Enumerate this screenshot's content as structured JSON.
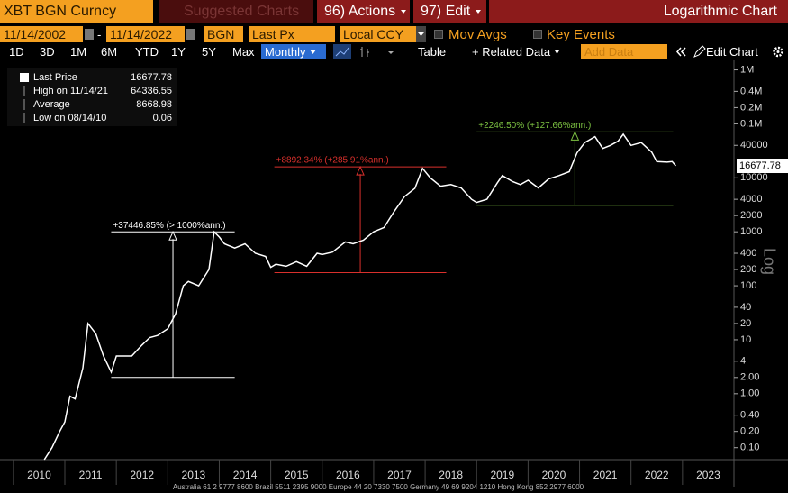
{
  "toolbar": {
    "security": "XBT BGN Curncy",
    "suggested": "Suggested Charts",
    "actions": "96) Actions",
    "edit": "97) Edit",
    "chart_name": "Logarithmic Chart"
  },
  "controls": {
    "start_date": "11/14/2002",
    "separator": "-",
    "end_date": "11/14/2022",
    "source": "BGN",
    "field": "Last Px",
    "currency": "Local CCY",
    "mov_avgs": "Mov Avgs",
    "key_events": "Key Events"
  },
  "periods": [
    "1D",
    "3D",
    "1M",
    "6M",
    "YTD",
    "1Y",
    "5Y",
    "Max"
  ],
  "frequency": "Monthly",
  "table": "Table",
  "related": "+ Related Data",
  "add_data": "Add Data",
  "edit_chart": "Edit Chart",
  "chart_data": {
    "type": "line",
    "log_scale": true,
    "y_label": "Log",
    "xlim": [
      2009.74,
      2024.0
    ],
    "xticks": [
      2010,
      2011,
      2012,
      2013,
      2014,
      2015,
      2016,
      2017,
      2018,
      2019,
      2020,
      2021,
      2022,
      2023
    ],
    "ylim": [
      0.06,
      1500000
    ],
    "yticks": [
      {
        "value": 0.1,
        "label": "0.10"
      },
      {
        "value": 0.2,
        "label": "0.20"
      },
      {
        "value": 0.4,
        "label": "0.40"
      },
      {
        "value": 1,
        "label": "1.00"
      },
      {
        "value": 2,
        "label": "2.00"
      },
      4,
      10,
      20,
      40,
      100,
      200,
      400,
      1000,
      2000,
      4000,
      10000,
      40000,
      {
        "value": 100000,
        "label": "0.1M"
      },
      {
        "value": 200000,
        "label": "0.2M"
      },
      {
        "value": 400000,
        "label": "0.4M"
      },
      {
        "value": 1000000,
        "label": "1M"
      }
    ],
    "series": [
      {
        "name": "Last Price",
        "color": "#ffffff",
        "x": [
          2010.6,
          2010.75,
          2010.9,
          2011.0,
          2011.1,
          2011.2,
          2011.35,
          2011.45,
          2011.6,
          2011.75,
          2011.9,
          2012.0,
          2012.1,
          2012.3,
          2012.5,
          2012.65,
          2012.8,
          2013.0,
          2013.15,
          2013.3,
          2013.4,
          2013.6,
          2013.8,
          2013.9,
          2014.0,
          2014.1,
          2014.3,
          2014.5,
          2014.7,
          2014.9,
          2015.0,
          2015.1,
          2015.3,
          2015.5,
          2015.7,
          2015.9,
          2016.0,
          2016.2,
          2016.45,
          2016.6,
          2016.8,
          2017.0,
          2017.2,
          2017.4,
          2017.6,
          2017.8,
          2017.95,
          2018.1,
          2018.3,
          2018.5,
          2018.7,
          2018.9,
          2019.0,
          2019.2,
          2019.4,
          2019.5,
          2019.7,
          2019.85,
          2020.0,
          2020.2,
          2020.4,
          2020.6,
          2020.8,
          2020.95,
          2021.1,
          2021.3,
          2021.45,
          2021.6,
          2021.75,
          2021.85,
          2022.0,
          2022.2,
          2022.4,
          2022.5,
          2022.7,
          2022.8,
          2022.87
        ],
        "values": [
          0.06,
          0.1,
          0.2,
          0.3,
          0.9,
          0.8,
          3,
          20,
          13,
          5,
          2.5,
          5,
          5,
          5,
          8,
          11,
          12,
          16,
          30,
          100,
          120,
          100,
          200,
          1000,
          800,
          600,
          500,
          600,
          400,
          350,
          220,
          250,
          230,
          280,
          230,
          400,
          380,
          420,
          650,
          600,
          700,
          1000,
          1200,
          2400,
          4500,
          6400,
          15000,
          10000,
          7000,
          7500,
          6500,
          4000,
          3500,
          4000,
          8000,
          11000,
          8500,
          7500,
          9000,
          6500,
          9500,
          11000,
          13000,
          29000,
          45000,
          58000,
          35000,
          40000,
          48000,
          64336.55,
          40000,
          45000,
          30000,
          20000,
          19500,
          20000,
          16677.78
        ]
      }
    ],
    "legend": [
      {
        "label": "Last Price",
        "value": 16677.78
      },
      {
        "label": "High on 11/14/21",
        "value": 64336.55
      },
      {
        "label": "Average",
        "value": 8668.98
      },
      {
        "label": "Low on 08/14/10",
        "value": 0.06
      }
    ],
    "annotations": [
      {
        "label": "+37446.85% (> 1000%ann.)",
        "color": "#ffffff",
        "x": [
          2011.9,
          2014.3
        ],
        "y": [
          2,
          1000
        ]
      },
      {
        "label": "+8892.34% (+285.91%ann.)",
        "color": "#d9302c",
        "x": [
          2015.07,
          2018.41
        ],
        "y": [
          175,
          16000
        ]
      },
      {
        "label": "+2246.50% (+127.66%ann.)",
        "color": "#7dc242",
        "x": [
          2019.0,
          2022.82
        ],
        "y": [
          3100,
          71000
        ]
      }
    ]
  },
  "footer": "Australia 61 2 9777 8600 Brazil 5511 2395 9000 Europe 44 20 7330 7500 Germany 49 69 9204 1210 Hong Kong 852 2977 6000"
}
